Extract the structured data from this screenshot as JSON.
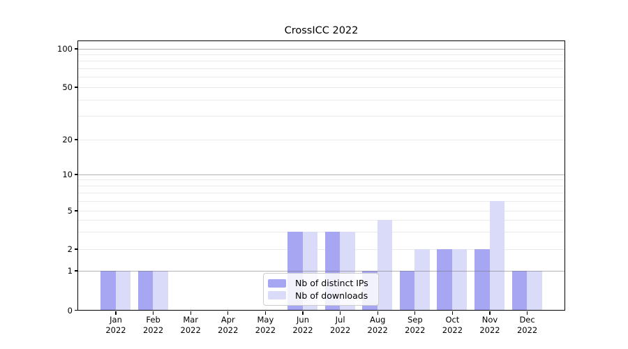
{
  "figure": {
    "background": "#ffffff"
  },
  "chart_data": {
    "type": "bar",
    "title": "CrossICC 2022",
    "categories": [
      "Jan 2022",
      "Feb 2022",
      "Mar 2022",
      "Apr 2022",
      "May 2022",
      "Jun 2022",
      "Jul 2022",
      "Aug 2022",
      "Sep 2022",
      "Oct 2022",
      "Nov 2022",
      "Dec 2022"
    ],
    "series": [
      {
        "name": "Nb of distinct IPs",
        "color": "#a6a6f2",
        "values": [
          1,
          1,
          0,
          0,
          0,
          3,
          3,
          1,
          1,
          2,
          2,
          1
        ]
      },
      {
        "name": "Nb of downloads",
        "color": "#dadaf9",
        "values": [
          1,
          1,
          0,
          0,
          0,
          3,
          3,
          4,
          2,
          2,
          6,
          1
        ]
      }
    ],
    "xlabel": "",
    "ylabel": "",
    "yscale": "symlog",
    "yticks": [
      0,
      1,
      2,
      5,
      10,
      20,
      50,
      100
    ],
    "ylim": [
      0,
      113
    ],
    "grid": "horizontal; major lines at 1,10,100; minor log sub-lines at 2-9,20-90",
    "legend_position": "lower center-left, inside plot"
  },
  "colors": {
    "axis": "#000000",
    "text": "#000000",
    "grid_major": "#74747a",
    "grid_minor": "#ebebee",
    "legend_border": "#cccccc",
    "legend_background": "#ffffff"
  }
}
